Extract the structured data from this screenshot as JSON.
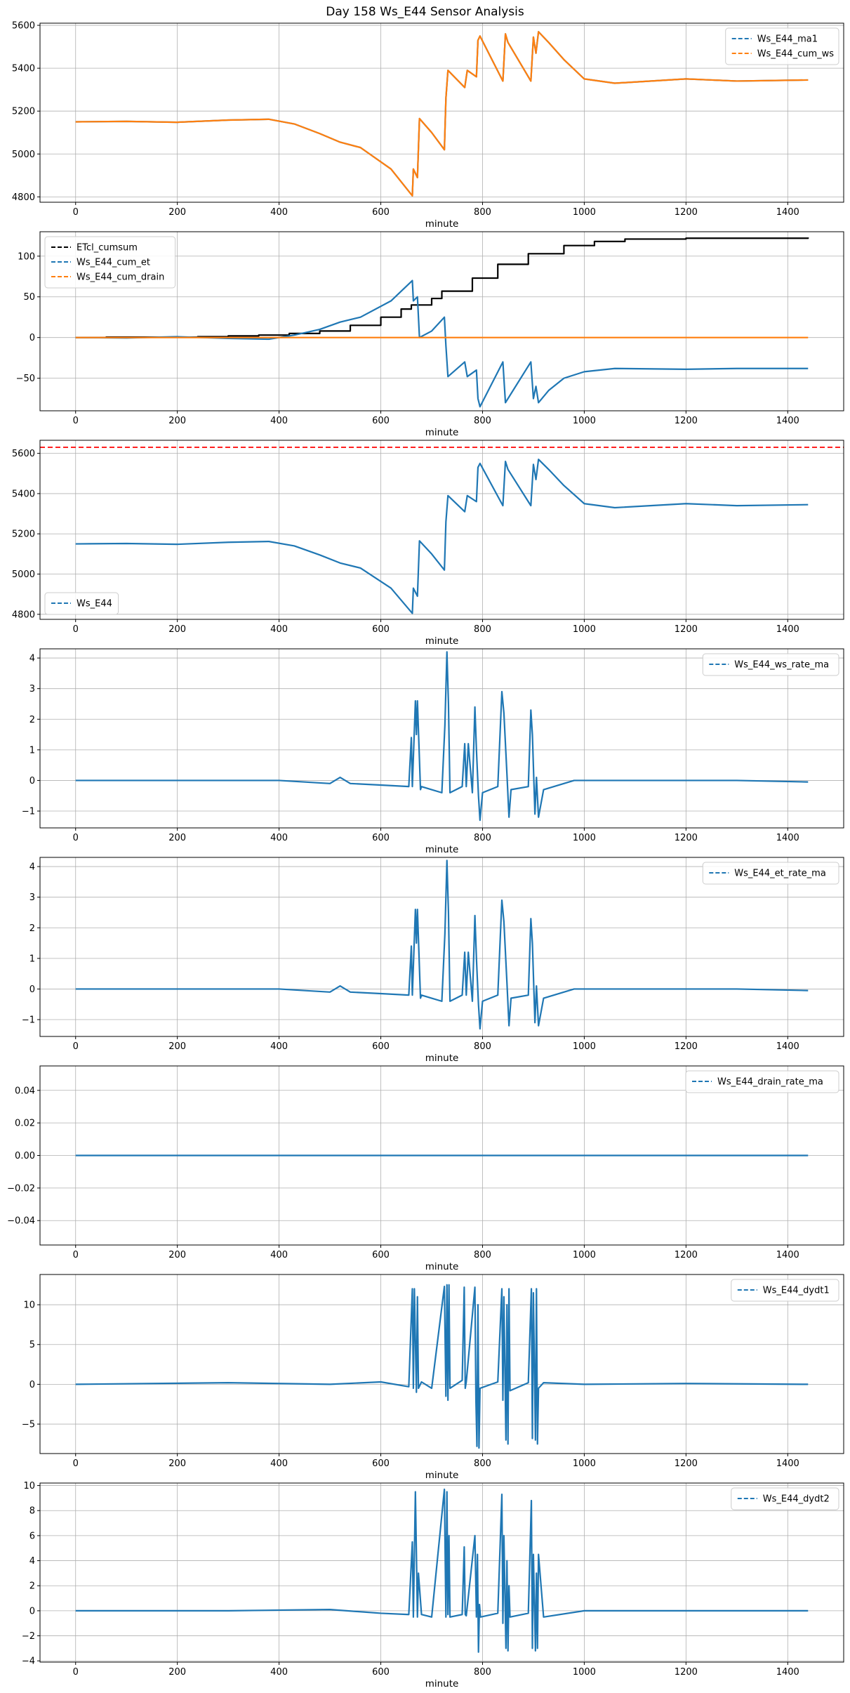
{
  "figure": {
    "title": "Day 158 Ws_E44 Sensor Analysis"
  },
  "chart_data": [
    {
      "type": "line",
      "xlabel": "minute",
      "ylabel": "",
      "xlim": [
        -70,
        1510
      ],
      "ylim": [
        4775,
        5610
      ],
      "xticks": [
        0,
        200,
        400,
        600,
        800,
        1000,
        1200,
        1400
      ],
      "yticks": [
        4800,
        5000,
        5200,
        5400,
        5600
      ],
      "grid": true,
      "legend": "top-right",
      "series": [
        {
          "name": "Ws_E44_ma1",
          "color": "#1f77b4",
          "style": "dashed",
          "x": [
            0,
            100,
            200,
            300,
            380,
            430,
            480,
            520,
            560,
            620,
            662,
            664,
            672,
            676,
            700,
            725,
            728,
            732,
            765,
            770,
            788,
            791,
            795,
            840,
            845,
            850,
            895,
            900,
            905,
            910,
            930,
            960,
            1000,
            1060,
            1200,
            1300,
            1440
          ],
          "values": [
            5150,
            5152,
            5148,
            5158,
            5162,
            5140,
            5095,
            5055,
            5030,
            4930,
            4805,
            4930,
            4890,
            5165,
            5100,
            5020,
            5260,
            5390,
            5310,
            5390,
            5360,
            5530,
            5550,
            5340,
            5560,
            5520,
            5340,
            5545,
            5470,
            5570,
            5520,
            5440,
            5350,
            5330,
            5350,
            5340,
            5345
          ]
        },
        {
          "name": "Ws_E44_cum_ws",
          "color": "#ff7f0e",
          "style": "solid",
          "x": [
            0,
            100,
            200,
            300,
            380,
            430,
            480,
            520,
            560,
            620,
            662,
            664,
            672,
            676,
            700,
            725,
            728,
            732,
            765,
            770,
            788,
            791,
            795,
            840,
            845,
            850,
            895,
            900,
            905,
            910,
            930,
            960,
            1000,
            1060,
            1200,
            1300,
            1440
          ],
          "values": [
            5150,
            5152,
            5148,
            5158,
            5162,
            5140,
            5095,
            5055,
            5030,
            4930,
            4805,
            4930,
            4890,
            5165,
            5100,
            5020,
            5260,
            5390,
            5310,
            5390,
            5360,
            5530,
            5550,
            5340,
            5560,
            5520,
            5340,
            5545,
            5470,
            5570,
            5520,
            5440,
            5350,
            5330,
            5350,
            5340,
            5345
          ]
        }
      ]
    },
    {
      "type": "line",
      "xlabel": "minute",
      "ylabel": "",
      "xlim": [
        -70,
        1510
      ],
      "ylim": [
        -90,
        130
      ],
      "xticks": [
        0,
        200,
        400,
        600,
        800,
        1000,
        1200,
        1400
      ],
      "yticks": [
        -50,
        0,
        50,
        100
      ],
      "grid": true,
      "legend": "top-left",
      "series": [
        {
          "name": "ETcl_cumsum",
          "color": "#000000",
          "style": "dashed",
          "x": [
            0,
            60,
            240,
            300,
            360,
            420,
            480,
            540,
            600,
            640,
            660,
            700,
            720,
            780,
            830,
            890,
            960,
            1020,
            1080,
            1200,
            1440
          ],
          "values": [
            0,
            0.5,
            1,
            2,
            3,
            5,
            8,
            15,
            25,
            35,
            40,
            48,
            57,
            73,
            90,
            103,
            113,
            118,
            121,
            122,
            123
          ]
        },
        {
          "name": "Ws_E44_cum_et",
          "color": "#1f77b4",
          "style": "dashed",
          "x": [
            0,
            100,
            200,
            300,
            380,
            430,
            480,
            520,
            560,
            620,
            662,
            664,
            672,
            676,
            700,
            725,
            728,
            732,
            765,
            770,
            788,
            791,
            795,
            840,
            845,
            850,
            895,
            900,
            905,
            910,
            930,
            960,
            1000,
            1060,
            1200,
            1300,
            1440
          ],
          "values": [
            0,
            -0.5,
            1,
            -1,
            -2,
            3,
            10,
            19,
            25,
            45,
            70,
            45,
            50,
            0,
            8,
            25,
            -10,
            -48,
            -30,
            -48,
            -40,
            -75,
            -85,
            -30,
            -80,
            -75,
            -30,
            -75,
            -60,
            -80,
            -65,
            -50,
            -42,
            -38,
            -39,
            -38,
            -38
          ]
        },
        {
          "name": "Ws_E44_cum_drain",
          "color": "#ff7f0e",
          "style": "dashed",
          "x": [
            0,
            1440
          ],
          "values": [
            0,
            0
          ]
        }
      ]
    },
    {
      "type": "line",
      "xlabel": "minute",
      "ylabel": "",
      "xlim": [
        -70,
        1510
      ],
      "ylim": [
        4775,
        5665
      ],
      "xticks": [
        0,
        200,
        400,
        600,
        800,
        1000,
        1200,
        1400
      ],
      "yticks": [
        4800,
        5000,
        5200,
        5400,
        5600
      ],
      "grid": true,
      "legend": "bottom-left",
      "hlines": [
        {
          "y": 5630,
          "color": "#ff0000",
          "style": "dashed"
        }
      ],
      "series": [
        {
          "name": "Ws_E44",
          "color": "#1f77b4",
          "style": "dashed",
          "x": [
            0,
            100,
            200,
            300,
            380,
            430,
            480,
            520,
            560,
            620,
            662,
            664,
            672,
            676,
            700,
            725,
            728,
            732,
            765,
            770,
            788,
            791,
            795,
            840,
            845,
            850,
            895,
            900,
            905,
            910,
            930,
            960,
            1000,
            1060,
            1200,
            1300,
            1440
          ],
          "values": [
            5150,
            5152,
            5148,
            5158,
            5162,
            5140,
            5095,
            5055,
            5030,
            4930,
            4805,
            4930,
            4890,
            5165,
            5100,
            5020,
            5260,
            5390,
            5310,
            5390,
            5360,
            5530,
            5550,
            5340,
            5560,
            5520,
            5340,
            5545,
            5470,
            5570,
            5520,
            5440,
            5350,
            5330,
            5350,
            5340,
            5345
          ]
        }
      ]
    },
    {
      "type": "line",
      "xlabel": "minute",
      "ylabel": "",
      "xlim": [
        -70,
        1510
      ],
      "ylim": [
        -1.55,
        4.3
      ],
      "xticks": [
        0,
        200,
        400,
        600,
        800,
        1000,
        1200,
        1400
      ],
      "yticks": [
        -1,
        0,
        1,
        2,
        3,
        4
      ],
      "grid": true,
      "legend": "top-right",
      "series": [
        {
          "name": "Ws_E44_ws_rate_ma",
          "color": "#1f77b4",
          "style": "dashed",
          "x": [
            0,
            200,
            400,
            500,
            520,
            540,
            600,
            655,
            660,
            662,
            668,
            670,
            672,
            678,
            680,
            700,
            720,
            726,
            730,
            733,
            736,
            760,
            765,
            768,
            772,
            780,
            785,
            788,
            792,
            795,
            800,
            830,
            838,
            842,
            848,
            852,
            856,
            890,
            895,
            898,
            903,
            906,
            910,
            920,
            980,
            1100,
            1300,
            1440
          ],
          "values": [
            0,
            0,
            0,
            -0.1,
            0.1,
            -0.1,
            -0.15,
            -0.2,
            1.4,
            -0.2,
            2.6,
            1.5,
            2.6,
            -0.3,
            -0.2,
            -0.3,
            -0.4,
            1.8,
            4.2,
            2.5,
            -0.4,
            -0.2,
            1.2,
            -0.2,
            1.2,
            -0.4,
            2.4,
            1.0,
            -0.5,
            -1.3,
            -0.4,
            -0.2,
            2.9,
            2.2,
            0.2,
            -1.2,
            -0.3,
            -0.2,
            2.3,
            1.5,
            -1.1,
            0.1,
            -1.2,
            -0.3,
            0,
            0,
            0,
            -0.05
          ]
        }
      ]
    },
    {
      "type": "line",
      "xlabel": "minute",
      "ylabel": "",
      "xlim": [
        -70,
        1510
      ],
      "ylim": [
        -1.55,
        4.3
      ],
      "xticks": [
        0,
        200,
        400,
        600,
        800,
        1000,
        1200,
        1400
      ],
      "yticks": [
        -1,
        0,
        1,
        2,
        3,
        4
      ],
      "grid": true,
      "legend": "top-right",
      "series": [
        {
          "name": "Ws_E44_et_rate_ma",
          "color": "#1f77b4",
          "style": "dashed",
          "x": [
            0,
            200,
            400,
            500,
            520,
            540,
            600,
            655,
            660,
            662,
            668,
            670,
            672,
            678,
            680,
            700,
            720,
            726,
            730,
            733,
            736,
            760,
            765,
            768,
            772,
            780,
            785,
            788,
            792,
            795,
            800,
            830,
            838,
            842,
            848,
            852,
            856,
            890,
            895,
            898,
            903,
            906,
            910,
            920,
            980,
            1100,
            1300,
            1440
          ],
          "values": [
            0,
            0,
            0,
            -0.1,
            0.1,
            -0.1,
            -0.15,
            -0.2,
            1.4,
            -0.2,
            2.6,
            1.5,
            2.6,
            -0.3,
            -0.2,
            -0.3,
            -0.4,
            1.8,
            4.2,
            2.5,
            -0.4,
            -0.2,
            1.2,
            -0.2,
            1.2,
            -0.4,
            2.4,
            1.0,
            -0.5,
            -1.3,
            -0.4,
            -0.2,
            2.9,
            2.2,
            0.2,
            -1.2,
            -0.3,
            -0.2,
            2.3,
            1.5,
            -1.1,
            0.1,
            -1.2,
            -0.3,
            0,
            0,
            0,
            -0.05
          ]
        }
      ]
    },
    {
      "type": "line",
      "xlabel": "minute",
      "ylabel": "",
      "xlim": [
        -70,
        1510
      ],
      "ylim": [
        -0.055,
        0.055
      ],
      "xticks": [
        0,
        200,
        400,
        600,
        800,
        1000,
        1200,
        1400
      ],
      "yticks": [
        -0.04,
        -0.02,
        0,
        0.02,
        0.04
      ],
      "ytick_labels": [
        "−0.04",
        "−0.02",
        "0.00",
        "0.02",
        "0.04"
      ],
      "grid": true,
      "legend": "top-right",
      "series": [
        {
          "name": "Ws_E44_drain_rate_ma",
          "color": "#1f77b4",
          "style": "dashed",
          "x": [
            0,
            1440
          ],
          "values": [
            0,
            0
          ]
        }
      ]
    },
    {
      "type": "line",
      "xlabel": "minute",
      "ylabel": "",
      "xlim": [
        -70,
        1510
      ],
      "ylim": [
        -8.7,
        13.8
      ],
      "xticks": [
        0,
        200,
        400,
        600,
        800,
        1000,
        1200,
        1400
      ],
      "yticks": [
        -5,
        0,
        5,
        10
      ],
      "grid": true,
      "legend": "top-right",
      "series": [
        {
          "name": "Ws_E44_dydt1",
          "color": "#1f77b4",
          "style": "dashed",
          "x": [
            0,
            300,
            500,
            600,
            655,
            662,
            664,
            666,
            670,
            672,
            674,
            680,
            700,
            725,
            728,
            730,
            732,
            734,
            736,
            760,
            764,
            766,
            768,
            785,
            787,
            789,
            791,
            793,
            795,
            830,
            838,
            840,
            842,
            846,
            848,
            850,
            852,
            854,
            890,
            896,
            898,
            900,
            904,
            906,
            908,
            910,
            920,
            1000,
            1200,
            1440
          ],
          "values": [
            0,
            0.2,
            0,
            0.3,
            -0.3,
            12,
            -0.5,
            12,
            -1,
            11,
            -0.5,
            0.3,
            -0.5,
            12.3,
            -1.5,
            12.5,
            -2,
            12.5,
            -0.5,
            0.5,
            12.2,
            -0.5,
            0.3,
            12.2,
            -2,
            -7.8,
            10,
            -8,
            -0.5,
            0.3,
            12,
            -2,
            11,
            -7,
            10,
            -7.5,
            12,
            -0.8,
            0.2,
            12,
            -6.8,
            11.5,
            -7,
            12,
            -7.5,
            -0.5,
            0.2,
            0,
            0.1,
            0
          ]
        }
      ]
    },
    {
      "type": "line",
      "xlabel": "minute",
      "ylabel": "",
      "xlim": [
        -70,
        1510
      ],
      "ylim": [
        -4.1,
        10.2
      ],
      "xticks": [
        0,
        200,
        400,
        600,
        800,
        1000,
        1200,
        1400
      ],
      "yticks": [
        -4,
        -2,
        0,
        2,
        4,
        6,
        8,
        10
      ],
      "grid": true,
      "legend": "top-right",
      "series": [
        {
          "name": "Ws_E44_dydt2",
          "color": "#1f77b4",
          "style": "dashed",
          "x": [
            0,
            300,
            500,
            600,
            655,
            662,
            664,
            668,
            672,
            674,
            680,
            700,
            725,
            728,
            730,
            732,
            734,
            736,
            760,
            764,
            766,
            768,
            785,
            788,
            790,
            792,
            794,
            796,
            830,
            838,
            840,
            842,
            846,
            848,
            850,
            852,
            854,
            890,
            896,
            898,
            900,
            904,
            906,
            908,
            910,
            920,
            1000,
            1200,
            1440
          ],
          "values": [
            0,
            0,
            0.1,
            -0.2,
            -0.3,
            5.5,
            -0.5,
            9.5,
            -0.5,
            3,
            -0.3,
            -0.5,
            9.7,
            -0.5,
            9.5,
            -0.3,
            6,
            -0.5,
            -0.3,
            5.1,
            -0.3,
            -0.4,
            6,
            -0.5,
            4.5,
            -3.3,
            0.5,
            -0.5,
            -0.2,
            9.3,
            -1,
            6,
            -3,
            4,
            -3.2,
            2,
            -0.5,
            -0.2,
            8.8,
            -3,
            4.5,
            -3.2,
            3,
            -3,
            4.5,
            -0.5,
            0,
            0,
            0
          ]
        }
      ]
    }
  ]
}
